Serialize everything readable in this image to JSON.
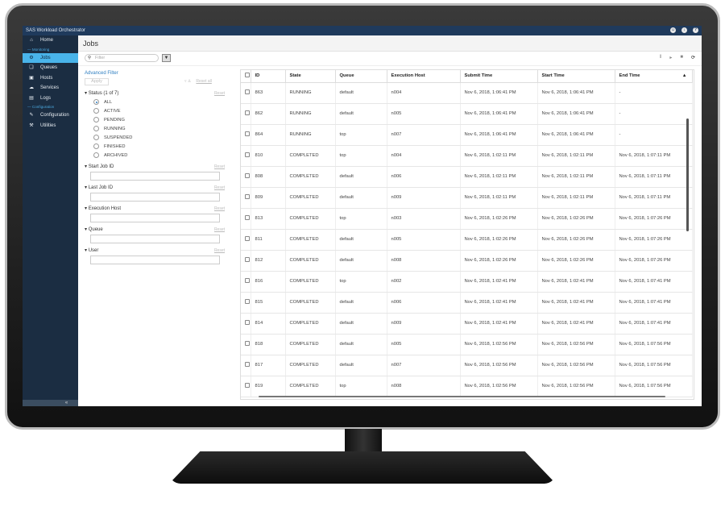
{
  "app": {
    "title": "SAS Workload Orchestrator",
    "header_icons": [
      "user-icon",
      "download-icon",
      "help-icon"
    ]
  },
  "sidebar": {
    "items": [
      {
        "label": "Home",
        "icon": "home-icon"
      },
      {
        "section": "Monitoring"
      },
      {
        "label": "Jobs",
        "icon": "gear-icon",
        "active": true
      },
      {
        "label": "Queues",
        "icon": "queues-icon"
      },
      {
        "label": "Hosts",
        "icon": "hosts-icon"
      },
      {
        "label": "Services",
        "icon": "services-icon"
      },
      {
        "label": "Logs",
        "icon": "logs-icon"
      },
      {
        "section": "Configuration"
      },
      {
        "label": "Configuration",
        "icon": "wrench-icon"
      },
      {
        "label": "Utilities",
        "icon": "utilities-icon"
      }
    ],
    "collapse": "«"
  },
  "page": {
    "title": "Jobs"
  },
  "toolbar": {
    "filter_placeholder": "Filter",
    "controls": [
      "pause-icon",
      "play-icon",
      "stop-icon",
      "refresh-icon"
    ]
  },
  "filters": {
    "advanced": "Advanced Filter",
    "apply": "Apply",
    "reset_all": "Reset all",
    "reset": "Reset",
    "status": {
      "label": "Status (1 of 7)",
      "options": [
        "ALL",
        "ACTIVE",
        "PENDING",
        "RUNNING",
        "SUSPENDED",
        "FINISHED",
        "ARCHIVED"
      ],
      "selected": "ALL"
    },
    "fields": [
      "Start Job ID",
      "Last Job ID",
      "Execution Host",
      "Queue",
      "User"
    ]
  },
  "table": {
    "columns": [
      "ID",
      "State",
      "Queue",
      "Execution Host",
      "Submit Time",
      "Start Time",
      "End Time"
    ],
    "sort_indicator": "▲",
    "rows": [
      [
        "863",
        "RUNNING",
        "default",
        "n004",
        "Nov 6, 2018, 1:06:41 PM",
        "Nov 6, 2018, 1:06:41 PM",
        "-"
      ],
      [
        "862",
        "RUNNING",
        "default",
        "n005",
        "Nov 6, 2018, 1:06:41 PM",
        "Nov 6, 2018, 1:06:41 PM",
        "-"
      ],
      [
        "864",
        "RUNNING",
        "top",
        "n007",
        "Nov 6, 2018, 1:06:41 PM",
        "Nov 6, 2018, 1:06:41 PM",
        "-"
      ],
      [
        "810",
        "COMPLETED",
        "top",
        "n004",
        "Nov 6, 2018, 1:02:11 PM",
        "Nov 6, 2018, 1:02:11 PM",
        "Nov 6, 2018, 1:07:11 PM"
      ],
      [
        "808",
        "COMPLETED",
        "default",
        "n006",
        "Nov 6, 2018, 1:02:11 PM",
        "Nov 6, 2018, 1:02:11 PM",
        "Nov 6, 2018, 1:07:11 PM"
      ],
      [
        "809",
        "COMPLETED",
        "default",
        "n009",
        "Nov 6, 2018, 1:02:11 PM",
        "Nov 6, 2018, 1:02:11 PM",
        "Nov 6, 2018, 1:07:11 PM"
      ],
      [
        "813",
        "COMPLETED",
        "top",
        "n003",
        "Nov 6, 2018, 1:02:26 PM",
        "Nov 6, 2018, 1:02:26 PM",
        "Nov 6, 2018, 1:07:26 PM"
      ],
      [
        "811",
        "COMPLETED",
        "default",
        "n005",
        "Nov 6, 2018, 1:02:26 PM",
        "Nov 6, 2018, 1:02:26 PM",
        "Nov 6, 2018, 1:07:26 PM"
      ],
      [
        "812",
        "COMPLETED",
        "default",
        "n008",
        "Nov 6, 2018, 1:02:26 PM",
        "Nov 6, 2018, 1:02:26 PM",
        "Nov 6, 2018, 1:07:26 PM"
      ],
      [
        "816",
        "COMPLETED",
        "top",
        "n002",
        "Nov 6, 2018, 1:02:41 PM",
        "Nov 6, 2018, 1:02:41 PM",
        "Nov 6, 2018, 1:07:41 PM"
      ],
      [
        "815",
        "COMPLETED",
        "default",
        "n006",
        "Nov 6, 2018, 1:02:41 PM",
        "Nov 6, 2018, 1:02:41 PM",
        "Nov 6, 2018, 1:07:41 PM"
      ],
      [
        "814",
        "COMPLETED",
        "default",
        "n009",
        "Nov 6, 2018, 1:02:41 PM",
        "Nov 6, 2018, 1:02:41 PM",
        "Nov 6, 2018, 1:07:41 PM"
      ],
      [
        "818",
        "COMPLETED",
        "default",
        "n005",
        "Nov 6, 2018, 1:02:56 PM",
        "Nov 6, 2018, 1:02:56 PM",
        "Nov 6, 2018, 1:07:56 PM"
      ],
      [
        "817",
        "COMPLETED",
        "default",
        "n007",
        "Nov 6, 2018, 1:02:56 PM",
        "Nov 6, 2018, 1:02:56 PM",
        "Nov 6, 2018, 1:07:56 PM"
      ],
      [
        "819",
        "COMPLETED",
        "top",
        "n008",
        "Nov 6, 2018, 1:02:56 PM",
        "Nov 6, 2018, 1:02:56 PM",
        "Nov 6, 2018, 1:07:56 PM"
      ]
    ]
  }
}
